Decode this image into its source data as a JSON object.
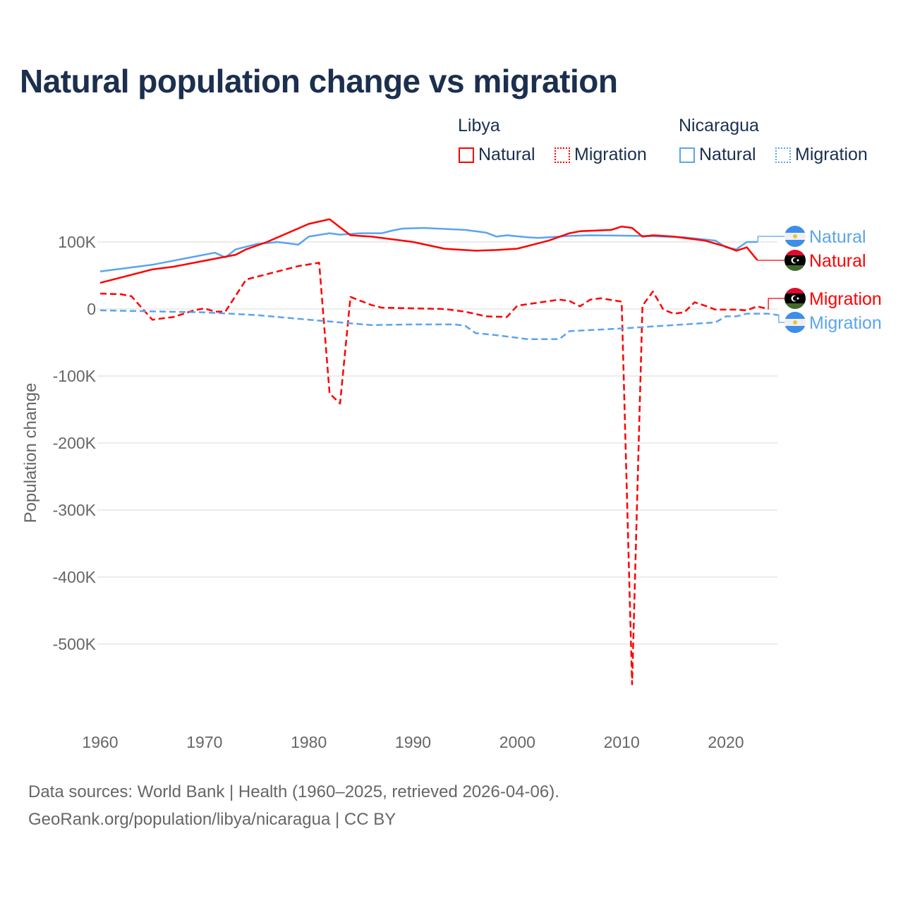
{
  "chart_data": {
    "type": "line",
    "title": "Natural population change vs migration",
    "ylabel": "Population change",
    "xlabel": "",
    "xlim": [
      1960,
      2025
    ],
    "ylim": [
      -600000,
      150000
    ],
    "x_ticks": [
      "1960",
      "1970",
      "1980",
      "1990",
      "2000",
      "2010",
      "2020"
    ],
    "y_ticks": [
      {
        "v": 100000,
        "label": "100K"
      },
      {
        "v": 0,
        "label": "0"
      },
      {
        "v": -100000,
        "label": "-100K"
      },
      {
        "v": -200000,
        "label": "-200K"
      },
      {
        "v": -300000,
        "label": "-300K"
      },
      {
        "v": -400000,
        "label": "-400K"
      },
      {
        "v": -500000,
        "label": "-500K"
      }
    ],
    "grid": true,
    "legend": {
      "placement": "top-right",
      "groups": [
        {
          "country": "Libya",
          "items": [
            "Natural",
            "Migration"
          ]
        },
        {
          "country": "Nicaragua",
          "items": [
            "Natural",
            "Migration"
          ]
        }
      ]
    },
    "series": [
      {
        "name": "Nicaragua Natural",
        "label": "Natural",
        "color": "#5ba4ee",
        "dash": false,
        "flag": "nicaragua",
        "points": [
          [
            1960,
            56
          ],
          [
            1965,
            66
          ],
          [
            1971,
            84
          ],
          [
            1972,
            77
          ],
          [
            1973,
            89
          ],
          [
            1975,
            97
          ],
          [
            1977,
            100
          ],
          [
            1979,
            96
          ],
          [
            1980,
            108
          ],
          [
            1982,
            113
          ],
          [
            1983,
            111
          ],
          [
            1985,
            113
          ],
          [
            1987,
            113
          ],
          [
            1988,
            117
          ],
          [
            1989,
            120
          ],
          [
            1991,
            121
          ],
          [
            1995,
            118
          ],
          [
            1997,
            114
          ],
          [
            1998,
            108
          ],
          [
            1999,
            110
          ],
          [
            2001,
            107
          ],
          [
            2002,
            106
          ],
          [
            2005,
            109
          ],
          [
            2007,
            110
          ],
          [
            2012,
            109
          ],
          [
            2016,
            107
          ],
          [
            2019,
            102
          ],
          [
            2020,
            92
          ],
          [
            2021,
            89
          ],
          [
            2022,
            100
          ],
          [
            2023,
            100
          ]
        ]
      },
      {
        "name": "Libya Natural",
        "label": "Natural",
        "color": "#ff0000",
        "dash": false,
        "flag": "libya",
        "points": [
          [
            1960,
            39
          ],
          [
            1965,
            59
          ],
          [
            1967,
            63
          ],
          [
            1970,
            72
          ],
          [
            1972,
            78
          ],
          [
            1973,
            81
          ],
          [
            1974,
            89
          ],
          [
            1976,
            100
          ],
          [
            1980,
            127
          ],
          [
            1982,
            134
          ],
          [
            1983,
            122
          ],
          [
            1984,
            110
          ],
          [
            1986,
            108
          ],
          [
            1990,
            100
          ],
          [
            1993,
            90
          ],
          [
            1996,
            87
          ],
          [
            1998,
            88
          ],
          [
            2000,
            90
          ],
          [
            2003,
            102
          ],
          [
            2005,
            113
          ],
          [
            2006,
            116
          ],
          [
            2009,
            118
          ],
          [
            2010,
            123
          ],
          [
            2011,
            121
          ],
          [
            2012,
            108
          ],
          [
            2013,
            110
          ],
          [
            2015,
            108
          ],
          [
            2018,
            102
          ],
          [
            2020,
            93
          ],
          [
            2021,
            87
          ],
          [
            2022,
            92
          ],
          [
            2023,
            73
          ]
        ]
      },
      {
        "name": "Libya Migration",
        "label": "Migration",
        "color": "#ff0000",
        "dash": true,
        "flag": "libya",
        "points": [
          [
            1960,
            23
          ],
          [
            1962,
            22
          ],
          [
            1963,
            19
          ],
          [
            1965,
            -16
          ],
          [
            1967,
            -12
          ],
          [
            1969,
            -2
          ],
          [
            1970,
            1
          ],
          [
            1971,
            -4
          ],
          [
            1972,
            -4
          ],
          [
            1974,
            44
          ],
          [
            1979,
            64
          ],
          [
            1981,
            69
          ],
          [
            1982,
            -126
          ],
          [
            1983,
            -141
          ],
          [
            1984,
            18
          ],
          [
            1986,
            6
          ],
          [
            1987,
            2
          ],
          [
            1990,
            1
          ],
          [
            1993,
            0
          ],
          [
            1995,
            -4
          ],
          [
            1997,
            -11
          ],
          [
            1999,
            -12
          ],
          [
            2000,
            5
          ],
          [
            2004,
            14
          ],
          [
            2005,
            12
          ],
          [
            2006,
            4
          ],
          [
            2007,
            14
          ],
          [
            2008,
            16
          ],
          [
            2010,
            11
          ],
          [
            2011,
            -560
          ],
          [
            2012,
            5
          ],
          [
            2013,
            26
          ],
          [
            2014,
            -1
          ],
          [
            2015,
            -7
          ],
          [
            2016,
            -5
          ],
          [
            2017,
            10
          ],
          [
            2018,
            5
          ],
          [
            2019,
            -1
          ],
          [
            2021,
            -1
          ],
          [
            2022,
            -2
          ],
          [
            2023,
            4
          ],
          [
            2024,
            0
          ]
        ]
      },
      {
        "name": "Nicaragua Migration",
        "label": "Migration",
        "color": "#5ba4ee",
        "dash": true,
        "flag": "nicaragua",
        "points": [
          [
            1960,
            -2
          ],
          [
            1970,
            -5
          ],
          [
            1975,
            -9
          ],
          [
            1980,
            -16
          ],
          [
            1983,
            -20
          ],
          [
            1986,
            -24
          ],
          [
            1990,
            -23
          ],
          [
            1994,
            -23
          ],
          [
            1995,
            -25
          ],
          [
            1996,
            -36
          ],
          [
            1998,
            -39
          ],
          [
            2001,
            -45
          ],
          [
            2004,
            -45
          ],
          [
            2005,
            -33
          ],
          [
            2010,
            -29
          ],
          [
            2015,
            -24
          ],
          [
            2019,
            -20
          ],
          [
            2020,
            -11
          ],
          [
            2021,
            -11
          ],
          [
            2022,
            -7
          ],
          [
            2024,
            -7
          ],
          [
            2025,
            -9
          ]
        ]
      }
    ],
    "units_note": "values in thousands"
  },
  "legend": {
    "libya": "Libya",
    "nicaragua": "Nicaragua",
    "natural": "Natural",
    "migration": "Migration"
  },
  "footer": {
    "line1": "Data sources: World Bank | Health (1960–2025, retrieved 2026-04-06).",
    "line2": "GeoRank.org/population/libya/nicaragua | CC BY"
  }
}
